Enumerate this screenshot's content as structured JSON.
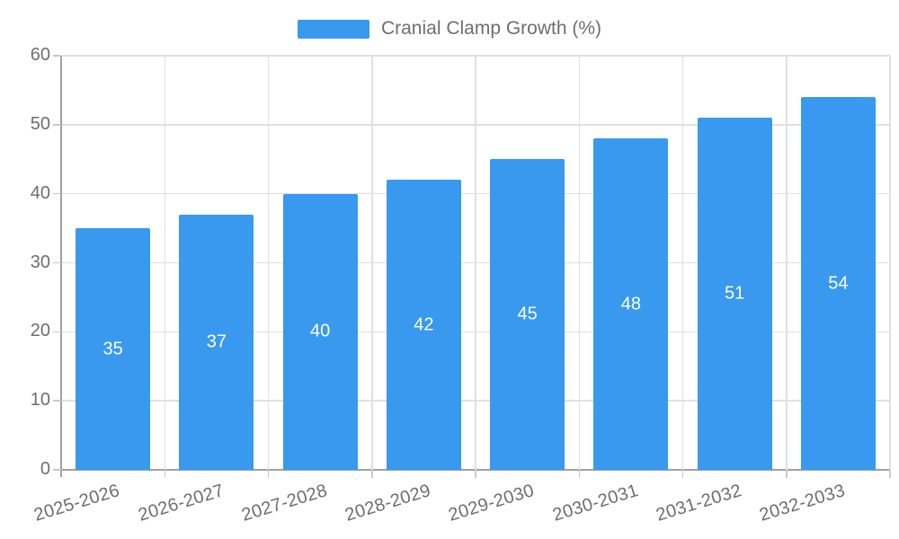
{
  "chart_data": {
    "type": "bar",
    "title": "",
    "xlabel": "",
    "ylabel": "",
    "legend": {
      "position": "top",
      "label": "Cranial Clamp Growth (%)"
    },
    "categories": [
      "2025-2026",
      "2026-2027",
      "2027-2028",
      "2028-2029",
      "2029-2030",
      "2030-2031",
      "2031-2032",
      "2032-2033"
    ],
    "series": [
      {
        "name": "Cranial Clamp Growth (%)",
        "values": [
          35,
          37,
          40,
          42,
          45,
          48,
          51,
          54
        ]
      }
    ],
    "ylim": [
      0,
      60
    ],
    "yticks": [
      0,
      10,
      20,
      30,
      40,
      50,
      60
    ],
    "grid": {
      "horizontal": true,
      "vertical": true
    },
    "colors": {
      "bar": "#3899ee",
      "bar_label": "#ffffff",
      "grid": "#e0e0e0",
      "axis": "#a0a0a0",
      "tick": "#c9c9c9",
      "text": "#6e6e6e"
    }
  }
}
